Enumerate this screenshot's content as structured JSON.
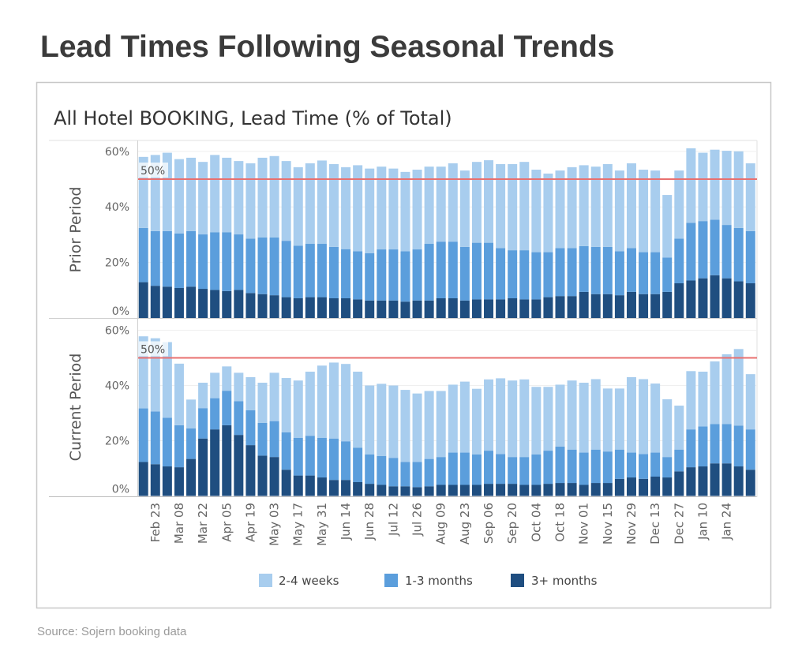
{
  "title": "Lead Times Following Seasonal Trends",
  "source": "Source: Sojern booking data",
  "chart_data": {
    "type": "bar",
    "stacked": true,
    "title": "All Hotel BOOKING, Lead Time (% of Total)",
    "x_tick_labels": [
      "Feb 23",
      "Mar 08",
      "Mar 22",
      "Apr 05",
      "Apr 19",
      "May 03",
      "May 17",
      "May 31",
      "Jun 14",
      "Jun 28",
      "Jul 12",
      "Jul 26",
      "Aug 09",
      "Aug 23",
      "Sep 06",
      "Sep 20",
      "Oct 04",
      "Oct 18",
      "Nov 01",
      "Nov 15",
      "Nov 29",
      "Dec 13",
      "Dec 27",
      "Jan 10",
      "Jan 24"
    ],
    "y_tick_labels": [
      "0%",
      "20%",
      "40%",
      "60%"
    ],
    "ylim": [
      0,
      63
    ],
    "grid": true,
    "reference_line": {
      "value": 50,
      "label": "50%",
      "color": "#e8706f"
    },
    "legend": {
      "placement": "bottom",
      "entries": [
        "2-4 weeks",
        "1-3 months",
        "3+ months"
      ]
    },
    "colors": {
      "2-4 weeks": "#a8cdee",
      "1-3 months": "#5b9edc",
      "3+ months": "#1f4e80"
    },
    "panels": [
      {
        "name": "Prior Period",
        "series": [
          {
            "name": "3+ months",
            "values": [
              12.9,
              11.6,
              11.3,
              10.8,
              11.3,
              10.5,
              10.1,
              9.7,
              10.1,
              9.0,
              8.6,
              8.2,
              7.5,
              7.1,
              7.5,
              7.5,
              7.1,
              7.1,
              6.7,
              6.3,
              6.3,
              6.3,
              5.9,
              6.3,
              6.3,
              7.1,
              7.1,
              6.3,
              6.7,
              6.7,
              6.7,
              7.1,
              6.7,
              6.7,
              7.5,
              7.9,
              7.9,
              9.4,
              8.6,
              8.6,
              8.2,
              9.4,
              8.6,
              8.6,
              9.4,
              12.5,
              13.5,
              14.3,
              15.4,
              14.3,
              13.2,
              12.5
            ]
          },
          {
            "name": "1-3 months",
            "values": [
              19.5,
              19.7,
              20.0,
              19.6,
              20.0,
              19.6,
              20.8,
              21.2,
              20.0,
              19.6,
              20.4,
              20.8,
              20.3,
              18.9,
              19.2,
              19.2,
              18.5,
              17.7,
              17.3,
              17.0,
              18.4,
              18.4,
              18.1,
              18.4,
              20.4,
              20.4,
              20.4,
              19.3,
              20.4,
              20.4,
              18.5,
              17.3,
              17.7,
              17.0,
              16.2,
              17.3,
              17.3,
              16.5,
              17.0,
              17.0,
              15.8,
              15.8,
              15.1,
              15.1,
              12.4,
              16.1,
              20.8,
              20.6,
              20.0,
              19.2,
              19.2,
              18.8
            ]
          },
          {
            "name": "2-4 weeks",
            "values": [
              25.6,
              27.4,
              28.2,
              26.8,
              26.4,
              26.1,
              27.8,
              26.8,
              26.4,
              27.1,
              28.7,
              29.3,
              28.7,
              28.3,
              29.0,
              30.0,
              29.8,
              29.5,
              31.0,
              30.5,
              29.8,
              29.1,
              28.6,
              28.7,
              27.8,
              27.0,
              28.2,
              27.5,
              29.1,
              29.7,
              30.2,
              31.0,
              31.8,
              29.7,
              28.3,
              27.9,
              29.1,
              29.1,
              28.9,
              29.8,
              29.1,
              30.5,
              29.7,
              29.4,
              22.5,
              24.5,
              26.8,
              24.6,
              25.2,
              26.7,
              27.6,
              24.4
            ]
          }
        ]
      },
      {
        "name": "Current Period",
        "series": [
          {
            "name": "3+ months",
            "values": [
              12.3,
              11.5,
              10.7,
              10.4,
              13.4,
              20.8,
              24.1,
              25.6,
              22.1,
              18.4,
              14.6,
              14.1,
              9.5,
              7.4,
              7.4,
              6.7,
              5.8,
              5.8,
              5.0,
              4.4,
              4.0,
              3.5,
              3.5,
              3.2,
              3.5,
              4.0,
              4.0,
              4.0,
              4.0,
              4.4,
              4.4,
              4.4,
              4.0,
              4.0,
              4.4,
              4.7,
              4.7,
              4.0,
              4.7,
              4.7,
              6.2,
              6.7,
              6.2,
              7.0,
              6.7,
              8.9,
              10.4,
              10.7,
              11.8,
              11.8,
              10.7,
              9.5
            ]
          },
          {
            "name": "1-3 months",
            "values": [
              19.4,
              19.1,
              17.6,
              15.2,
              11.1,
              11.0,
              11.3,
              12.5,
              12.2,
              12.6,
              11.9,
              13.0,
              13.5,
              13.6,
              14.4,
              14.3,
              15.0,
              14.0,
              12.5,
              10.6,
              10.5,
              10.3,
              8.8,
              9.1,
              9.9,
              10.1,
              11.7,
              11.7,
              11.0,
              12.0,
              10.8,
              9.7,
              10.1,
              11.0,
              12.0,
              13.2,
              12.1,
              11.7,
              12.1,
              11.4,
              10.6,
              9.0,
              9.0,
              8.7,
              7.4,
              7.9,
              13.7,
              14.5,
              14.2,
              14.2,
              14.8,
              14.6
            ]
          },
          {
            "name": "2-4 weeks",
            "values": [
              26.1,
              26.5,
              27.4,
              22.3,
              10.4,
              9.2,
              9.2,
              8.8,
              10.3,
              12.0,
              14.5,
              17.5,
              19.7,
              20.8,
              23.2,
              26.2,
              27.5,
              28.0,
              27.5,
              25.0,
              26.1,
              26.2,
              26.1,
              24.8,
              24.6,
              23.9,
              24.6,
              25.7,
              23.8,
              25.8,
              27.4,
              27.7,
              28.1,
              24.5,
              23.1,
              22.4,
              25.0,
              25.3,
              25.5,
              22.8,
              22.1,
              27.3,
              27.1,
              25.0,
              20.9,
              15.9,
              21.1,
              19.8,
              22.7,
              25.3,
              27.7,
              20.0
            ]
          }
        ]
      }
    ]
  }
}
